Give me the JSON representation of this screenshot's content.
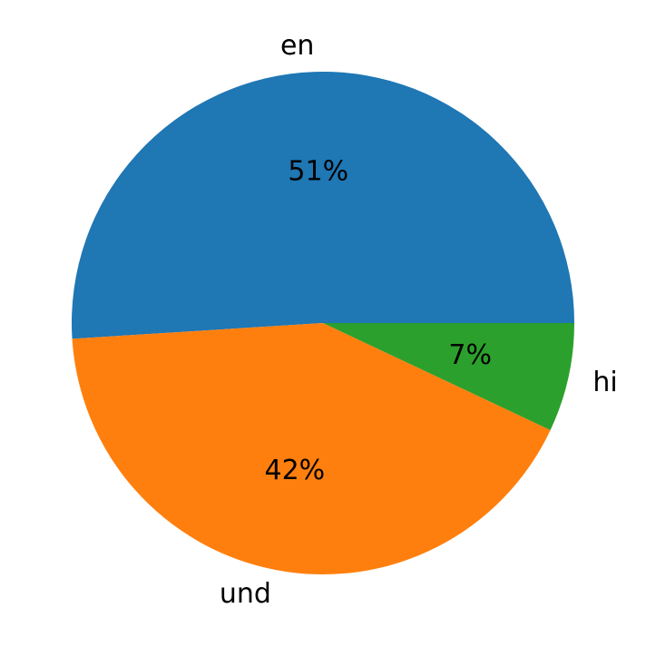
{
  "chart_data": {
    "type": "pie",
    "categories": [
      "en",
      "und",
      "hi"
    ],
    "values": [
      51,
      42,
      7
    ],
    "value_labels": [
      "51%",
      "42%",
      "7%"
    ],
    "colors": [
      "#1f77b4",
      "#ff7f0e",
      "#2ca02c"
    ]
  }
}
